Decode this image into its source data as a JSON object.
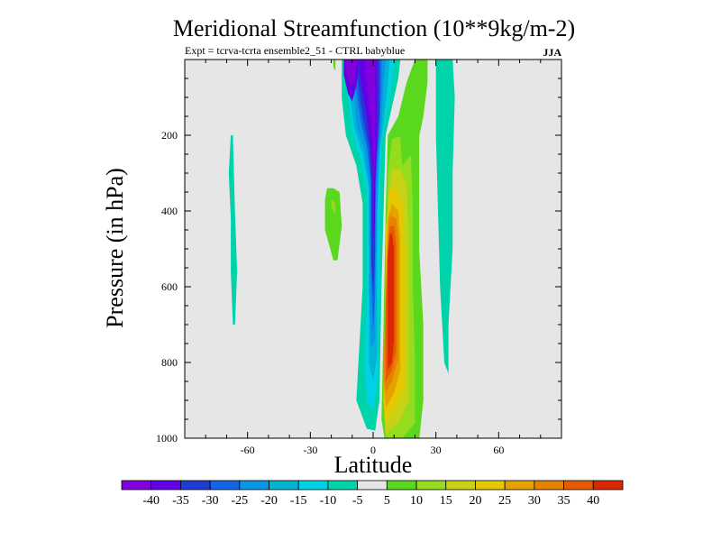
{
  "chart_data": {
    "type": "filled-contour",
    "title": "Meridional Streamfunction (10**9kg/m-2)",
    "subtitle": "Expt = tcrva-tcrta  ensemble2_51 - CTRL babyblue",
    "season": "JJA",
    "xlabel": "Latitude",
    "ylabel": "Pressure (in hPa)",
    "xlim": [
      -90,
      90
    ],
    "ylim": [
      1000,
      0
    ],
    "x_ticks": [
      "-60",
      "-30",
      "0",
      "30",
      "60"
    ],
    "x_tick_values": [
      -60,
      -30,
      0,
      30,
      60
    ],
    "y_ticks": [
      "200",
      "400",
      "600",
      "800",
      "1000"
    ],
    "y_tick_values": [
      200,
      400,
      600,
      800,
      1000
    ],
    "colorbar": {
      "labels": [
        "-40",
        "-35",
        "-30",
        "-25",
        "-20",
        "-15",
        "-10",
        "-5",
        "5",
        "10",
        "15",
        "20",
        "25",
        "30",
        "35",
        "40"
      ],
      "colors": [
        "#8200dc",
        "#6400e6",
        "#1e3cd2",
        "#1464e6",
        "#0a96e6",
        "#00b4d2",
        "#00d2e6",
        "#00d2aa",
        "#e6e6e6",
        "#5ad81e",
        "#96dc1e",
        "#c8d214",
        "#e6c800",
        "#e6a000",
        "#e68200",
        "#e65a00",
        "#dc2800"
      ]
    },
    "regions": [
      {
        "name": "positive-cell-outer",
        "level": "5",
        "color": "#5ad81e",
        "points": [
          [
            6,
            1020
          ],
          [
            14,
            1015
          ],
          [
            22,
            1005
          ],
          [
            24,
            900
          ],
          [
            24,
            700
          ],
          [
            22,
            500
          ],
          [
            22,
            300
          ],
          [
            22,
            180
          ],
          [
            20,
            140
          ],
          [
            12,
            150
          ],
          [
            7,
            200
          ],
          [
            6,
            400
          ],
          [
            5,
            700
          ],
          [
            4,
            950
          ]
        ]
      },
      {
        "name": "positive-cell-10",
        "level": "10",
        "color": "#96dc1e",
        "points": [
          [
            6,
            1010
          ],
          [
            14,
            1000
          ],
          [
            20,
            960
          ],
          [
            20,
            800
          ],
          [
            19,
            600
          ],
          [
            19,
            400
          ],
          [
            18,
            240
          ],
          [
            14,
            200
          ],
          [
            9,
            210
          ],
          [
            7,
            300
          ],
          [
            6,
            600
          ],
          [
            5,
            900
          ]
        ]
      },
      {
        "name": "positive-cell-15",
        "level": "15",
        "color": "#c8d214",
        "points": [
          [
            6,
            990
          ],
          [
            12,
            960
          ],
          [
            17,
            900
          ],
          [
            17,
            700
          ],
          [
            17,
            500
          ],
          [
            16,
            330
          ],
          [
            13,
            290
          ],
          [
            9,
            290
          ],
          [
            7,
            380
          ],
          [
            6,
            650
          ],
          [
            5,
            900
          ]
        ]
      },
      {
        "name": "positive-cell-20",
        "level": "20",
        "color": "#e6c800",
        "points": [
          [
            6,
            960
          ],
          [
            11,
            910
          ],
          [
            15,
            860
          ],
          [
            15,
            700
          ],
          [
            15,
            500
          ],
          [
            14,
            380
          ],
          [
            11,
            340
          ],
          [
            8,
            340
          ],
          [
            6,
            450
          ],
          [
            6,
            750
          ],
          [
            5,
            900
          ]
        ]
      },
      {
        "name": "positive-cell-25",
        "level": "25",
        "color": "#e6a000",
        "points": [
          [
            6,
            920
          ],
          [
            10,
            880
          ],
          [
            13,
            820
          ],
          [
            13,
            650
          ],
          [
            13,
            480
          ],
          [
            12,
            400
          ],
          [
            9,
            380
          ],
          [
            7,
            420
          ],
          [
            6,
            600
          ],
          [
            5,
            850
          ]
        ]
      },
      {
        "name": "positive-cell-30",
        "level": "30",
        "color": "#e68200",
        "points": [
          [
            6,
            880
          ],
          [
            9,
            850
          ],
          [
            12,
            790
          ],
          [
            12,
            620
          ],
          [
            12,
            480
          ],
          [
            11,
            420
          ],
          [
            8,
            410
          ],
          [
            7,
            470
          ],
          [
            6,
            650
          ],
          [
            5,
            820
          ]
        ]
      },
      {
        "name": "positive-cell-35",
        "level": "35",
        "color": "#e65a00",
        "points": [
          [
            6,
            850
          ],
          [
            9,
            820
          ],
          [
            11,
            770
          ],
          [
            11,
            600
          ],
          [
            11,
            490
          ],
          [
            10,
            440
          ],
          [
            8,
            440
          ],
          [
            7,
            500
          ],
          [
            6,
            650
          ],
          [
            6,
            800
          ]
        ]
      },
      {
        "name": "positive-cell-40",
        "level": "40",
        "color": "#dc2800",
        "points": [
          [
            7,
            820
          ],
          [
            9,
            800
          ],
          [
            10,
            740
          ],
          [
            10,
            600
          ],
          [
            10,
            500
          ],
          [
            9,
            460
          ],
          [
            8,
            460
          ],
          [
            7,
            520
          ],
          [
            7,
            650
          ]
        ]
      },
      {
        "name": "negative-band-outer",
        "level": "-5",
        "color": "#00d2aa",
        "points": [
          [
            -15,
            0
          ],
          [
            -15,
            100
          ],
          [
            -13,
            200
          ],
          [
            -8,
            280
          ],
          [
            -5,
            380
          ],
          [
            -5,
            600
          ],
          [
            -7,
            800
          ],
          [
            -8,
            900
          ],
          [
            -3,
            975
          ],
          [
            1,
            980
          ],
          [
            3,
            900
          ],
          [
            4,
            600
          ],
          [
            5,
            400
          ],
          [
            6,
            200
          ],
          [
            8,
            150
          ],
          [
            12,
            50
          ],
          [
            13,
            0
          ]
        ]
      },
      {
        "name": "negative-band-10",
        "level": "-10",
        "color": "#00d2e6",
        "points": [
          [
            -13,
            0
          ],
          [
            -12,
            100
          ],
          [
            -10,
            190
          ],
          [
            -6,
            260
          ],
          [
            -3,
            350
          ],
          [
            -3,
            600
          ],
          [
            -4,
            800
          ],
          [
            -3,
            900
          ],
          [
            0,
            930
          ],
          [
            2,
            850
          ],
          [
            3,
            600
          ],
          [
            3,
            400
          ],
          [
            4,
            220
          ],
          [
            6,
            160
          ],
          [
            9,
            60
          ],
          [
            10,
            0
          ]
        ]
      },
      {
        "name": "negative-band-15",
        "level": "-15",
        "color": "#00b4d2",
        "points": [
          [
            -11,
            0
          ],
          [
            -11,
            100
          ],
          [
            -9,
            180
          ],
          [
            -5,
            250
          ],
          [
            -2,
            340
          ],
          [
            -2,
            600
          ],
          [
            -2,
            800
          ],
          [
            0,
            850
          ],
          [
            2,
            780
          ],
          [
            2,
            600
          ],
          [
            2,
            400
          ],
          [
            3,
            240
          ],
          [
            5,
            170
          ],
          [
            7,
            60
          ],
          [
            8,
            0
          ]
        ]
      },
      {
        "name": "negative-band-20",
        "level": "-20",
        "color": "#0a96e6",
        "points": [
          [
            -10,
            0
          ],
          [
            -9,
            90
          ],
          [
            -8,
            170
          ],
          [
            -4,
            240
          ],
          [
            -2,
            330
          ],
          [
            -2,
            600
          ],
          [
            -1,
            760
          ],
          [
            1,
            740
          ],
          [
            1,
            600
          ],
          [
            2,
            400
          ],
          [
            3,
            250
          ],
          [
            4,
            180
          ],
          [
            5,
            60
          ],
          [
            6,
            0
          ]
        ]
      },
      {
        "name": "negative-band-25",
        "level": "-25",
        "color": "#1464e6",
        "points": [
          [
            -9,
            0
          ],
          [
            -8,
            80
          ],
          [
            -6,
            160
          ],
          [
            -3,
            230
          ],
          [
            -1,
            320
          ],
          [
            -1,
            550
          ],
          [
            0,
            720
          ],
          [
            1,
            620
          ],
          [
            1,
            400
          ],
          [
            2,
            260
          ],
          [
            3,
            190
          ],
          [
            4,
            60
          ],
          [
            4,
            0
          ]
        ]
      },
      {
        "name": "negative-band-30",
        "level": "-30",
        "color": "#1e3cd2",
        "points": [
          [
            -8,
            0
          ],
          [
            -7,
            70
          ],
          [
            -5,
            150
          ],
          [
            -2,
            230
          ],
          [
            -1,
            330
          ],
          [
            -1,
            520
          ],
          [
            0,
            620
          ],
          [
            1,
            500
          ],
          [
            1,
            330
          ],
          [
            2,
            230
          ],
          [
            3,
            150
          ],
          [
            3,
            0
          ]
        ]
      },
      {
        "name": "negative-band-35",
        "level": "-35",
        "color": "#6400e6",
        "points": [
          [
            -7,
            0
          ],
          [
            -6,
            60
          ],
          [
            -4,
            120
          ],
          [
            -1,
            240
          ],
          [
            0,
            330
          ],
          [
            0,
            480
          ],
          [
            1,
            420
          ],
          [
            1,
            320
          ],
          [
            2,
            200
          ],
          [
            2,
            100
          ],
          [
            2,
            0
          ]
        ]
      },
      {
        "name": "negative-upper-left-35",
        "level": "-35",
        "color": "#6400e6",
        "points": [
          [
            -14,
            0
          ],
          [
            -14,
            40
          ],
          [
            -12,
            90
          ],
          [
            -10,
            110
          ],
          [
            -8,
            70
          ],
          [
            -7,
            30
          ],
          [
            -7,
            0
          ]
        ]
      },
      {
        "name": "negative-upper-left-40",
        "level": "-40",
        "color": "#8200dc",
        "points": [
          [
            -13,
            0
          ],
          [
            -13,
            30
          ],
          [
            -11,
            70
          ],
          [
            -9,
            60
          ],
          [
            -8,
            20
          ],
          [
            -8,
            0
          ]
        ]
      },
      {
        "name": "negative-core-40",
        "level": "-40",
        "color": "#8200dc",
        "points": [
          [
            -4,
            0
          ],
          [
            -3,
            60
          ],
          [
            -1,
            160
          ],
          [
            0,
            260
          ],
          [
            0,
            360
          ],
          [
            1,
            250
          ],
          [
            1,
            120
          ],
          [
            1,
            0
          ]
        ]
      },
      {
        "name": "upper-right-green",
        "level": "5",
        "color": "#5ad81e",
        "points": [
          [
            14,
            280
          ],
          [
            21,
            230
          ],
          [
            24,
            150
          ],
          [
            26,
            60
          ],
          [
            26,
            0
          ],
          [
            20,
            0
          ],
          [
            16,
            60
          ],
          [
            12,
            150
          ]
        ]
      },
      {
        "name": "right-teal-band",
        "level": "-5",
        "color": "#00d2aa",
        "points": [
          [
            30,
            0
          ],
          [
            30,
            200
          ],
          [
            31,
            400
          ],
          [
            32,
            600
          ],
          [
            34,
            800
          ],
          [
            36,
            830
          ],
          [
            36,
            700
          ],
          [
            38,
            500
          ],
          [
            38,
            300
          ],
          [
            39,
            100
          ],
          [
            38,
            0
          ]
        ]
      },
      {
        "name": "left-teal-strip",
        "level": "-5",
        "color": "#00d2aa",
        "points": [
          [
            -69,
            300
          ],
          [
            -68,
            420
          ],
          [
            -68,
            560
          ],
          [
            -67,
            700
          ],
          [
            -66,
            700
          ],
          [
            -65,
            560
          ],
          [
            -66,
            400
          ],
          [
            -67,
            200
          ],
          [
            -68,
            200
          ]
        ]
      },
      {
        "name": "left-green-patch",
        "level": "5",
        "color": "#5ad81e",
        "points": [
          [
            -23,
            370
          ],
          [
            -23,
            450
          ],
          [
            -19,
            530
          ],
          [
            -17,
            530
          ],
          [
            -15,
            440
          ],
          [
            -16,
            350
          ],
          [
            -19,
            340
          ],
          [
            -22,
            340
          ]
        ]
      },
      {
        "name": "left-green-patch-inner",
        "level": "10",
        "color": "#96dc1e",
        "points": [
          [
            -20,
            370
          ],
          [
            -20,
            390
          ],
          [
            -18,
            410
          ],
          [
            -18,
            380
          ]
        ]
      },
      {
        "name": "top-green-nub",
        "level": "5",
        "color": "#5ad81e",
        "points": [
          [
            -19,
            0
          ],
          [
            -19,
            20
          ],
          [
            -18,
            30
          ],
          [
            -18,
            0
          ]
        ]
      }
    ]
  }
}
